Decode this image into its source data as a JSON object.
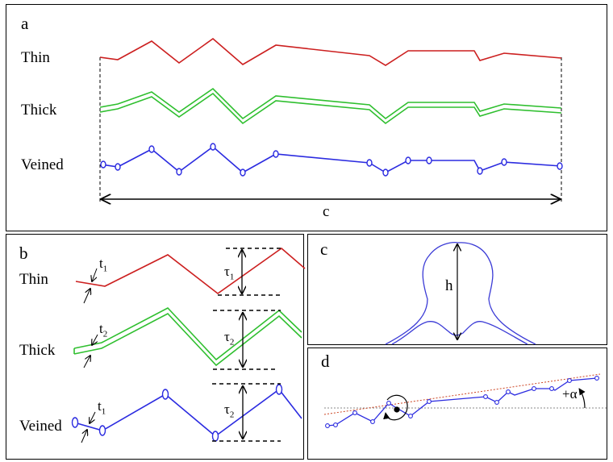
{
  "panel_a": {
    "letter": "a",
    "rows": {
      "thin": "Thin",
      "thick": "Thick",
      "veined": "Veined"
    },
    "span_label": "c",
    "colors": {
      "thin": "#cc1f1f",
      "thick": "#2fbf2f",
      "veined": "#2b2be0"
    }
  },
  "panel_b": {
    "letter": "b",
    "rows": {
      "thin": "Thin",
      "thick": "Thick",
      "veined": "Veined"
    },
    "symbols": {
      "t1_base": "t",
      "t1_sub": "1",
      "t2_base": "t",
      "t2_sub": "2",
      "t3_base": "t",
      "t3_sub": "1",
      "tau1_base": "τ",
      "tau1_sub": "1",
      "tau2_base": "τ",
      "tau2_sub": "2",
      "tau3_base": "τ",
      "tau3_sub": "2"
    }
  },
  "panel_c": {
    "letter": "c",
    "height_label": "h"
  },
  "panel_d": {
    "letter": "d",
    "angle_label": "+α"
  }
}
